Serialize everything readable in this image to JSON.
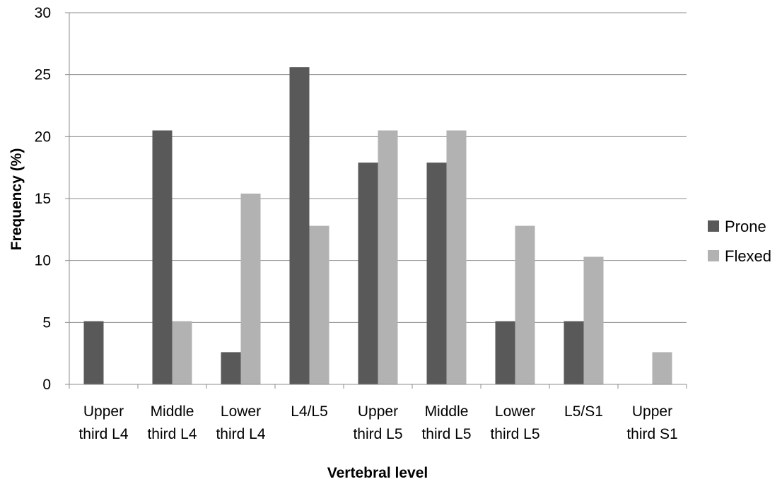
{
  "chart_data": {
    "type": "bar",
    "title": "",
    "xlabel": "Vertebral level",
    "ylabel": "Frequency (%)",
    "ylim": [
      0,
      30
    ],
    "yticks": [
      0,
      5,
      10,
      15,
      20,
      25,
      30
    ],
    "grid": true,
    "legend_position": "right",
    "categories": [
      [
        "Upper",
        "third L4"
      ],
      [
        "Middle",
        "third L4"
      ],
      [
        "Lower",
        "third L4"
      ],
      [
        "L4/L5"
      ],
      [
        "Upper",
        "third L5"
      ],
      [
        "Middle",
        "third L5"
      ],
      [
        "Lower",
        "third L5"
      ],
      [
        "L5/S1"
      ],
      [
        "Upper",
        "third S1"
      ]
    ],
    "series": [
      {
        "name": "Prone",
        "color": "#595959",
        "values": [
          5.1,
          20.5,
          2.6,
          25.6,
          17.9,
          17.9,
          5.1,
          5.1,
          0
        ]
      },
      {
        "name": "Flexed",
        "color": "#b2b2b2",
        "values": [
          0,
          5.1,
          15.4,
          12.8,
          20.5,
          20.5,
          12.8,
          10.3,
          2.6
        ]
      }
    ]
  }
}
